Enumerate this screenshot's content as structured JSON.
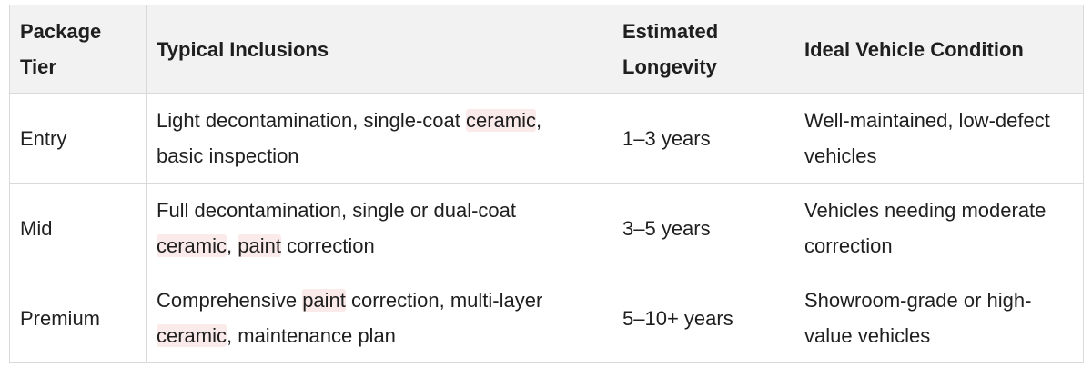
{
  "table": {
    "header": [
      "Package Tier",
      "Typical Inclusions",
      "Estimated Longevity",
      "Ideal Vehicle Condition"
    ],
    "rows": [
      [
        [
          {
            "text": "Entry"
          }
        ],
        [
          {
            "text": "Light decontamination, single-coat "
          },
          {
            "text": "ceramic",
            "highlight": true
          },
          {
            "text": ", basic inspection"
          }
        ],
        [
          {
            "text": "1–3 years"
          }
        ],
        [
          {
            "text": "Well-maintained, low-defect vehicles"
          }
        ]
      ],
      [
        [
          {
            "text": "Mid"
          }
        ],
        [
          {
            "text": "Full decontamination, single or dual-coat "
          },
          {
            "text": "ceramic",
            "highlight": true
          },
          {
            "text": ", "
          },
          {
            "text": "paint",
            "highlight": true
          },
          {
            "text": " correction"
          }
        ],
        [
          {
            "text": "3–5 years"
          }
        ],
        [
          {
            "text": "Vehicles needing moderate correction"
          }
        ]
      ],
      [
        [
          {
            "text": "Premium"
          }
        ],
        [
          {
            "text": "Comprehensive "
          },
          {
            "text": "paint",
            "highlight": true
          },
          {
            "text": " correction, multi-layer "
          },
          {
            "text": "ceramic",
            "highlight": true
          },
          {
            "text": ", maintenance plan"
          }
        ],
        [
          {
            "text": "5–10+ years"
          }
        ],
        [
          {
            "text": "Showroom-grade or high-value vehicles"
          }
        ]
      ]
    ]
  }
}
